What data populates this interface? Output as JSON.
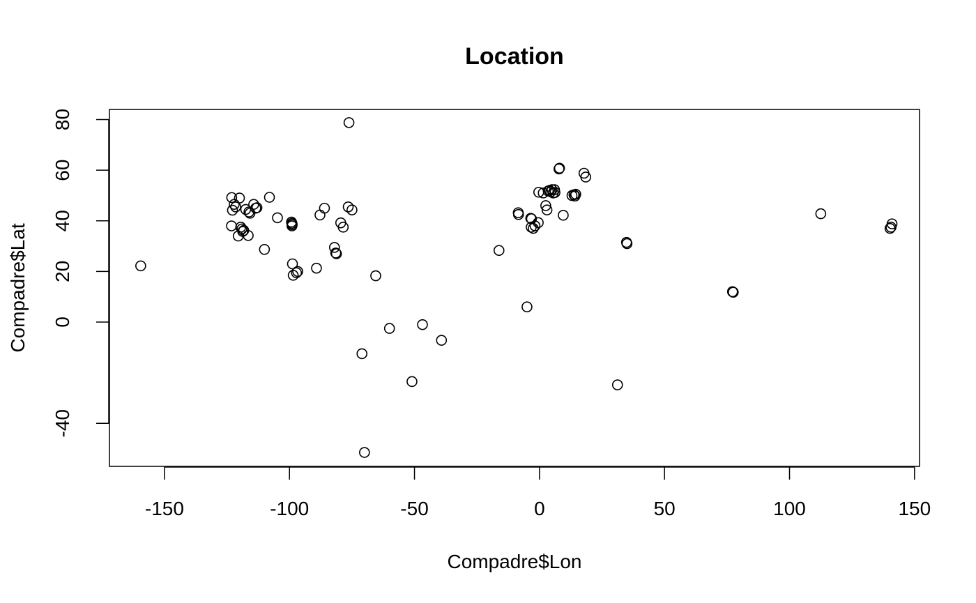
{
  "chart_data": {
    "type": "scatter",
    "title": "Location",
    "xlabel": "Compadre$Lon",
    "ylabel": "Compadre$Lat",
    "xlim": [
      -172,
      152
    ],
    "ylim": [
      -57,
      84
    ],
    "xticks": [
      -150,
      -100,
      -50,
      0,
      50,
      100,
      150
    ],
    "yticks": [
      -40,
      0,
      20,
      40,
      60,
      80
    ],
    "grid": false,
    "legend": "none",
    "x": [
      -159.5,
      -123.1,
      -123.2,
      -122.8,
      -122.1,
      -121.5,
      -120.5,
      -120.0,
      -119.5,
      -119.0,
      -118.7,
      -118.3,
      -117.5,
      -116.5,
      -116.2,
      -115.8,
      -114.3,
      -113.5,
      -113.0,
      -110.0,
      -108.0,
      -104.8,
      -99.2,
      -99.0,
      -98.9,
      -98.8,
      -99.0,
      -98.5,
      -97.2,
      -96.7,
      -89.2,
      -87.8,
      -86.0,
      -82.0,
      -81.5,
      -81.2,
      -79.5,
      -78.5,
      -76.5,
      -76.2,
      -75.0,
      -71.0,
      -70.0,
      -65.5,
      -60.0,
      -51.0,
      -46.8,
      -39.2,
      -16.2,
      -8.5,
      -8.4,
      -5.0,
      -3.5,
      -3.3,
      -3.2,
      -2.5,
      -1.8,
      -0.5,
      -0.3,
      1.5,
      2.5,
      3.0,
      3.5,
      4.0,
      4.5,
      5.0,
      5.5,
      6.0,
      6.2,
      7.8,
      8.0,
      9.5,
      13.0,
      13.8,
      14.2,
      14.5,
      17.8,
      18.5,
      31.2,
      34.8,
      35.0,
      77.2,
      77.5,
      112.5,
      140.2,
      140.6,
      141.0
    ],
    "y": [
      22.2,
      49.2,
      38.0,
      44.2,
      46.5,
      45.5,
      34.0,
      49.0,
      37.5,
      36.8,
      35.8,
      36.2,
      44.5,
      34.2,
      43.5,
      43.0,
      46.5,
      45.0,
      45.2,
      28.7,
      49.3,
      41.2,
      39.5,
      39.0,
      38.5,
      23.0,
      38.0,
      18.5,
      19.5,
      20.0,
      21.3,
      42.3,
      45.0,
      29.5,
      27.3,
      27.0,
      39.2,
      37.5,
      45.5,
      78.8,
      44.3,
      -12.5,
      -51.5,
      18.3,
      -2.5,
      -23.5,
      -1.0,
      -7.2,
      28.3,
      43.2,
      42.5,
      6.0,
      41.0,
      37.5,
      40.8,
      37.0,
      38.0,
      39.3,
      51.3,
      51.0,
      46.0,
      44.3,
      51.8,
      52.0,
      51.5,
      52.3,
      51.0,
      52.3,
      51.2,
      60.5,
      60.8,
      42.2,
      50.0,
      50.3,
      49.8,
      50.5,
      58.8,
      57.3,
      -24.8,
      31.5,
      31.0,
      12.0,
      11.8,
      42.8,
      37.0,
      37.5,
      38.8
    ]
  }
}
